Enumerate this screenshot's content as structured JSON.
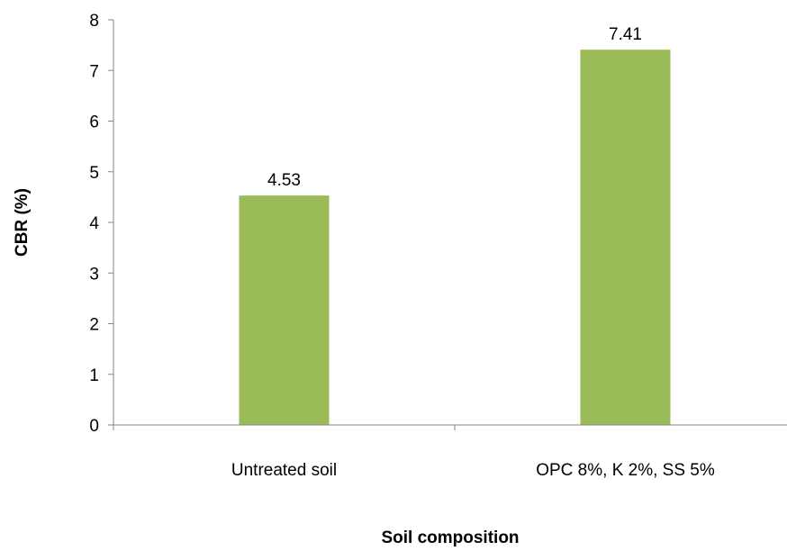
{
  "chart_data": {
    "type": "bar",
    "categories": [
      "Untreated soil",
      "OPC 8%, K 2%, SS 5%"
    ],
    "values": [
      4.53,
      7.41
    ],
    "data_labels": [
      "4.53",
      "7.41"
    ],
    "xlabel": "Soil composition",
    "ylabel": "CBR (%)",
    "ylim": [
      0,
      8
    ],
    "yticks": [
      "0",
      "1",
      "2",
      "3",
      "4",
      "5",
      "6",
      "7",
      "8"
    ],
    "grid": false,
    "legend": "none",
    "bar_color": "#9BBB59"
  }
}
